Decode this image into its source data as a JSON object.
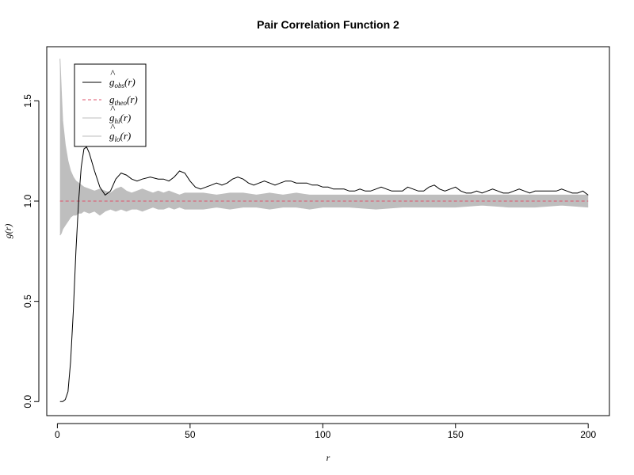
{
  "chart_data": {
    "type": "line",
    "title": "Pair Correlation Function 2",
    "xlabel": "r",
    "ylabel": "g(r)",
    "xlim": [
      -4,
      208
    ],
    "ylim": [
      -0.07,
      1.77
    ],
    "xticks": [
      0,
      50,
      100,
      150,
      200
    ],
    "yticks": [
      0.0,
      0.5,
      1.0,
      1.5
    ],
    "xtick_labels": [
      "0",
      "50",
      "100",
      "150",
      "200"
    ],
    "ytick_labels": [
      "0.0",
      "0.5",
      "1.0",
      "1.5"
    ],
    "legend_position": "top-left",
    "legend": [
      {
        "hat": true,
        "base": "g",
        "sub": "obs",
        "tail": "(r)",
        "color": "#000000",
        "dash": "none",
        "key": "obs"
      },
      {
        "hat": false,
        "base": "g",
        "sub": "theo",
        "tail": "(r)",
        "color": "#DF536B",
        "dash": "4,3",
        "key": "theo"
      },
      {
        "hat": true,
        "base": "g",
        "sub": "hi",
        "tail": "(r)",
        "color": "#BEBEBE",
        "dash": "none",
        "key": "hi"
      },
      {
        "hat": true,
        "base": "g",
        "sub": "lo",
        "tail": "(r)",
        "color": "#BEBEBE",
        "dash": "none",
        "key": "lo"
      }
    ],
    "series": [
      {
        "key": "obs",
        "color": "#000000",
        "x": [
          1,
          2,
          3,
          4,
          5,
          6,
          7,
          8,
          9,
          10,
          11,
          12,
          14,
          16,
          18,
          20,
          22,
          24,
          26,
          28,
          30,
          32,
          35,
          38,
          40,
          42,
          44,
          46,
          48,
          50,
          52,
          54,
          56,
          58,
          60,
          62,
          64,
          66,
          68,
          70,
          72,
          74,
          76,
          78,
          80,
          82,
          84,
          86,
          88,
          90,
          92,
          94,
          96,
          98,
          100,
          102,
          104,
          106,
          108,
          110,
          112,
          114,
          116,
          118,
          120,
          122,
          124,
          126,
          128,
          130,
          132,
          134,
          136,
          138,
          140,
          142,
          144,
          146,
          148,
          150,
          152,
          154,
          156,
          158,
          160,
          162,
          164,
          166,
          168,
          170,
          172,
          174,
          176,
          178,
          180,
          182,
          184,
          186,
          188,
          190,
          192,
          194,
          196,
          198,
          200
        ],
        "y": [
          0.0,
          0.0,
          0.01,
          0.05,
          0.2,
          0.45,
          0.75,
          1.0,
          1.17,
          1.26,
          1.27,
          1.24,
          1.15,
          1.07,
          1.03,
          1.05,
          1.11,
          1.14,
          1.13,
          1.11,
          1.1,
          1.11,
          1.12,
          1.11,
          1.11,
          1.1,
          1.12,
          1.15,
          1.14,
          1.1,
          1.07,
          1.06,
          1.07,
          1.08,
          1.09,
          1.08,
          1.09,
          1.11,
          1.12,
          1.11,
          1.09,
          1.08,
          1.09,
          1.1,
          1.09,
          1.08,
          1.09,
          1.1,
          1.1,
          1.09,
          1.09,
          1.09,
          1.08,
          1.08,
          1.07,
          1.07,
          1.06,
          1.06,
          1.06,
          1.05,
          1.05,
          1.06,
          1.05,
          1.05,
          1.06,
          1.07,
          1.06,
          1.05,
          1.05,
          1.05,
          1.07,
          1.06,
          1.05,
          1.05,
          1.07,
          1.08,
          1.06,
          1.05,
          1.06,
          1.07,
          1.05,
          1.04,
          1.04,
          1.05,
          1.04,
          1.05,
          1.06,
          1.05,
          1.04,
          1.04,
          1.05,
          1.06,
          1.05,
          1.04,
          1.05,
          1.05,
          1.05,
          1.05,
          1.05,
          1.06,
          1.05,
          1.04,
          1.04,
          1.05,
          1.03
        ]
      },
      {
        "key": "theo",
        "color": "#DF536B",
        "x": [
          1,
          200
        ],
        "y": [
          1.0,
          1.0
        ]
      },
      {
        "key": "hi",
        "color": "#BEBEBE",
        "x": [
          1,
          1.5,
          2,
          3,
          4,
          5,
          6,
          7,
          8,
          9,
          10,
          12,
          14,
          16,
          18,
          20,
          22,
          24,
          26,
          28,
          30,
          32,
          34,
          36,
          38,
          40,
          42,
          44,
          46,
          48,
          50,
          55,
          60,
          65,
          70,
          75,
          80,
          85,
          90,
          95,
          100,
          110,
          120,
          130,
          140,
          150,
          160,
          170,
          180,
          190,
          200
        ],
        "y": [
          1.71,
          1.55,
          1.4,
          1.28,
          1.2,
          1.15,
          1.12,
          1.1,
          1.09,
          1.08,
          1.07,
          1.06,
          1.05,
          1.06,
          1.05,
          1.04,
          1.06,
          1.07,
          1.05,
          1.04,
          1.05,
          1.06,
          1.05,
          1.04,
          1.05,
          1.04,
          1.05,
          1.04,
          1.03,
          1.04,
          1.04,
          1.04,
          1.03,
          1.04,
          1.04,
          1.03,
          1.04,
          1.03,
          1.04,
          1.03,
          1.03,
          1.03,
          1.03,
          1.03,
          1.03,
          1.03,
          1.03,
          1.03,
          1.03,
          1.03,
          1.03
        ]
      },
      {
        "key": "lo",
        "color": "#BEBEBE",
        "x": [
          1,
          1.5,
          2,
          3,
          4,
          5,
          6,
          7,
          8,
          9,
          10,
          12,
          14,
          16,
          18,
          20,
          22,
          24,
          26,
          28,
          30,
          32,
          34,
          36,
          38,
          40,
          42,
          44,
          46,
          48,
          50,
          55,
          60,
          65,
          70,
          75,
          80,
          85,
          90,
          95,
          100,
          110,
          120,
          130,
          140,
          150,
          160,
          170,
          180,
          190,
          200
        ],
        "y": [
          0.83,
          0.84,
          0.86,
          0.88,
          0.9,
          0.92,
          0.93,
          0.93,
          0.94,
          0.94,
          0.95,
          0.94,
          0.95,
          0.93,
          0.95,
          0.96,
          0.95,
          0.96,
          0.95,
          0.96,
          0.96,
          0.95,
          0.96,
          0.97,
          0.96,
          0.96,
          0.97,
          0.96,
          0.97,
          0.96,
          0.96,
          0.96,
          0.97,
          0.96,
          0.97,
          0.97,
          0.96,
          0.97,
          0.97,
          0.96,
          0.97,
          0.97,
          0.96,
          0.97,
          0.97,
          0.97,
          0.98,
          0.97,
          0.97,
          0.98,
          0.97
        ]
      }
    ]
  }
}
